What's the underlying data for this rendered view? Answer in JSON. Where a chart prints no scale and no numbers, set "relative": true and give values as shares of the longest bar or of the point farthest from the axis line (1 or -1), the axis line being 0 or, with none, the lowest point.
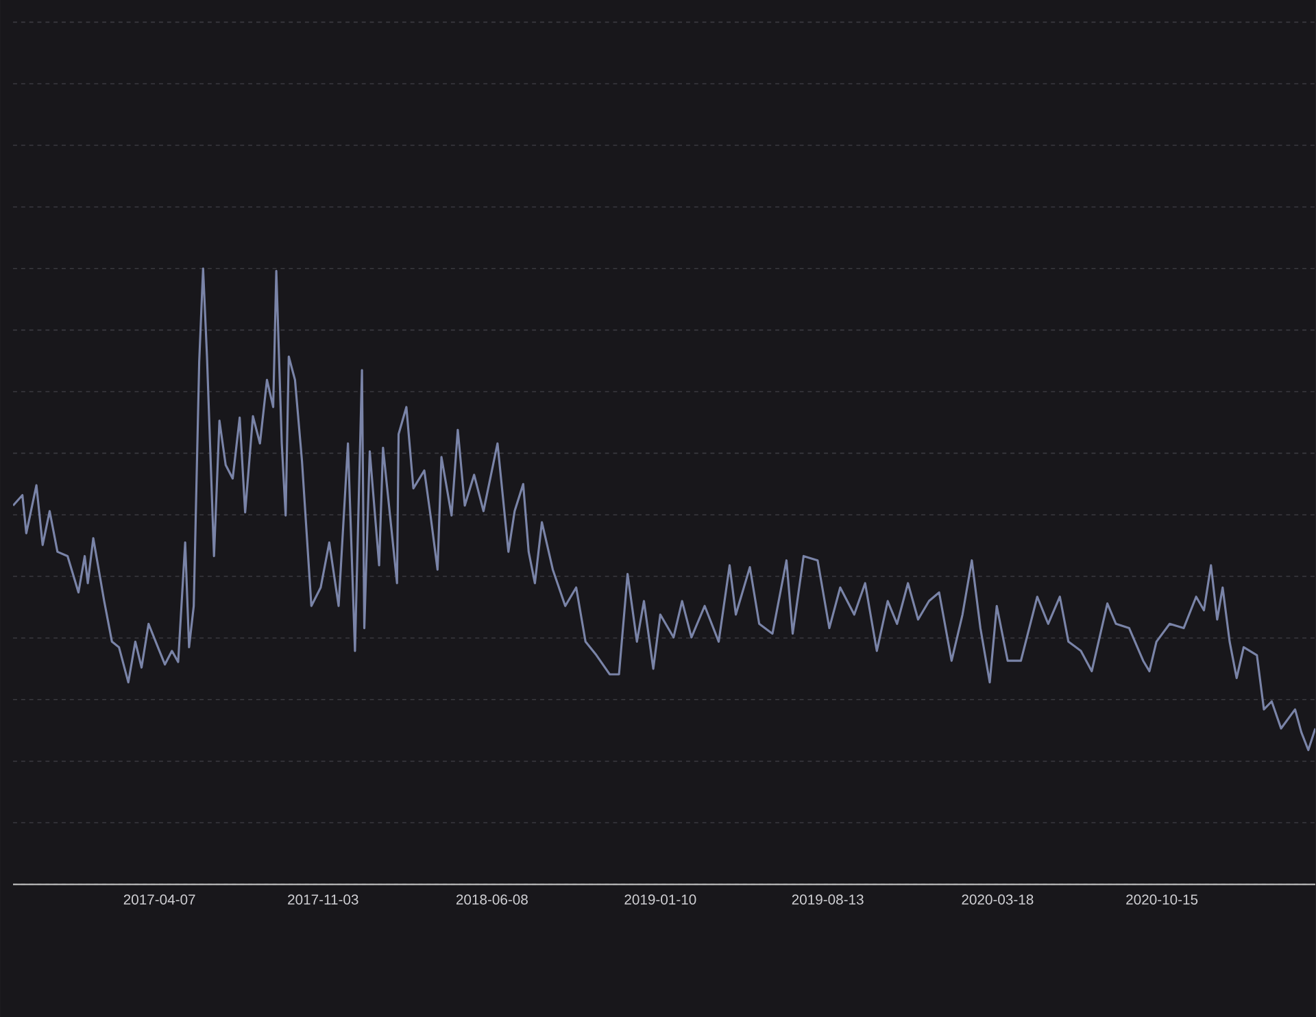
{
  "chart_data": {
    "type": "line",
    "relative": true,
    "grid": "y",
    "color": "#7a84a8",
    "xlim": [
      "2016-10-01",
      "2021-04-30"
    ],
    "xticks": [
      "2017-04-07",
      "2017-11-03",
      "2018-06-08",
      "2019-01-10",
      "2019-08-13",
      "2020-03-18",
      "2020-10-15"
    ],
    "x": [
      "2016-10-01",
      "2016-10-13",
      "2016-10-18",
      "2016-10-31",
      "2016-11-08",
      "2016-11-17",
      "2016-11-27",
      "2016-12-10",
      "2016-12-24",
      "2017-01-01",
      "2017-01-05",
      "2017-01-12",
      "2017-01-26",
      "2017-02-05",
      "2017-02-14",
      "2017-02-26",
      "2017-03-07",
      "2017-03-15",
      "2017-03-24",
      "2017-04-05",
      "2017-04-14",
      "2017-04-23",
      "2017-05-01",
      "2017-05-10",
      "2017-05-15",
      "2017-05-21",
      "2017-05-28",
      "2017-06-02",
      "2017-06-07",
      "2017-06-16",
      "2017-06-23",
      "2017-07-01",
      "2017-07-10",
      "2017-07-19",
      "2017-07-26",
      "2017-08-05",
      "2017-08-14",
      "2017-08-23",
      "2017-08-31",
      "2017-09-04",
      "2017-09-11",
      "2017-09-16",
      "2017-09-20",
      "2017-09-28",
      "2017-10-07",
      "2017-10-19",
      "2017-10-31",
      "2017-11-11",
      "2017-11-23",
      "2017-12-05",
      "2017-12-14",
      "2017-12-23",
      "2017-12-26",
      "2018-01-02",
      "2018-01-14",
      "2018-01-19",
      "2018-02-06",
      "2018-02-08",
      "2018-02-18",
      "2018-02-27",
      "2018-03-13",
      "2018-03-21",
      "2018-03-30",
      "2018-04-04",
      "2018-04-17",
      "2018-04-25",
      "2018-05-04",
      "2018-05-16",
      "2018-05-28",
      "2018-06-15",
      "2018-06-29",
      "2018-07-07",
      "2018-07-18",
      "2018-07-25",
      "2018-08-02",
      "2018-08-11",
      "2018-08-25",
      "2018-09-10",
      "2018-09-24",
      "2018-10-06",
      "2018-10-20",
      "2018-11-06",
      "2018-11-18",
      "2018-11-29",
      "2018-12-11",
      "2018-12-20",
      "2019-01-01",
      "2019-01-10",
      "2019-01-27",
      "2019-02-07",
      "2019-02-19",
      "2019-03-08",
      "2019-03-26",
      "2019-04-09",
      "2019-04-17",
      "2019-05-05",
      "2019-05-17",
      "2019-06-03",
      "2019-06-21",
      "2019-06-29",
      "2019-07-13",
      "2019-07-31",
      "2019-08-15",
      "2019-08-29",
      "2019-09-16",
      "2019-09-30",
      "2019-10-15",
      "2019-10-29",
      "2019-11-10",
      "2019-11-24",
      "2019-12-07",
      "2019-12-21",
      "2020-01-03",
      "2020-01-19",
      "2020-02-02",
      "2020-02-14",
      "2020-02-25",
      "2020-03-08",
      "2020-03-17",
      "2020-03-31",
      "2020-04-17",
      "2020-05-08",
      "2020-05-22",
      "2020-06-06",
      "2020-06-17",
      "2020-07-03",
      "2020-07-17",
      "2020-08-06",
      "2020-08-17",
      "2020-09-03",
      "2020-09-21",
      "2020-09-29",
      "2020-10-08",
      "2020-10-25",
      "2020-11-12",
      "2020-11-28",
      "2020-12-08",
      "2020-12-17",
      "2020-12-25",
      "2021-01-01",
      "2021-01-10",
      "2021-01-19",
      "2021-01-28",
      "2021-02-14",
      "2021-02-23",
      "2021-03-05",
      "2021-03-17",
      "2021-04-04",
      "2021-04-12",
      "2021-04-21",
      "2021-04-30"
    ],
    "values": [
      0.615,
      0.632,
      0.57,
      0.648,
      0.551,
      0.606,
      0.54,
      0.533,
      0.474,
      0.533,
      0.489,
      0.562,
      0.46,
      0.394,
      0.385,
      0.328,
      0.394,
      0.352,
      0.423,
      0.385,
      0.357,
      0.379,
      0.361,
      0.555,
      0.385,
      0.452,
      0.848,
      1.0,
      0.857,
      0.533,
      0.753,
      0.681,
      0.659,
      0.758,
      0.604,
      0.76,
      0.716,
      0.819,
      0.775,
      0.996,
      0.716,
      0.599,
      0.857,
      0.819,
      0.687,
      0.452,
      0.482,
      0.555,
      0.452,
      0.716,
      0.379,
      0.835,
      0.416,
      0.703,
      0.518,
      0.709,
      0.489,
      0.731,
      0.775,
      0.643,
      0.672,
      0.599,
      0.511,
      0.694,
      0.599,
      0.738,
      0.615,
      0.665,
      0.606,
      0.716,
      0.54,
      0.606,
      0.65,
      0.54,
      0.489,
      0.588,
      0.511,
      0.452,
      0.482,
      0.394,
      0.372,
      0.341,
      0.341,
      0.504,
      0.394,
      0.46,
      0.35,
      0.438,
      0.401,
      0.46,
      0.401,
      0.452,
      0.394,
      0.518,
      0.438,
      0.515,
      0.423,
      0.407,
      0.526,
      0.407,
      0.533,
      0.526,
      0.416,
      0.482,
      0.438,
      0.489,
      0.379,
      0.46,
      0.423,
      0.489,
      0.43,
      0.46,
      0.474,
      0.363,
      0.438,
      0.526,
      0.416,
      0.328,
      0.452,
      0.363,
      0.363,
      0.467,
      0.423,
      0.467,
      0.394,
      0.379,
      0.346,
      0.456,
      0.423,
      0.416,
      0.363,
      0.346,
      0.394,
      0.423,
      0.416,
      0.467,
      0.445,
      0.518,
      0.43,
      0.482,
      0.394,
      0.335,
      0.385,
      0.372,
      0.284,
      0.297,
      0.253,
      0.284,
      0.247,
      0.218,
      0.253
    ]
  }
}
